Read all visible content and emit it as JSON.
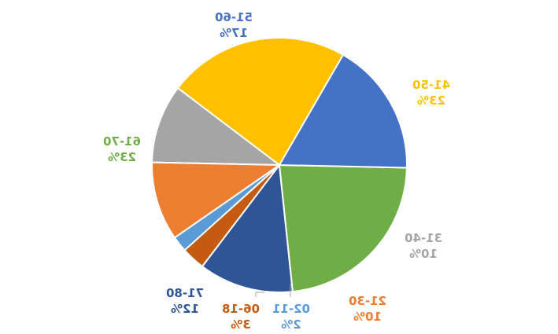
{
  "chart_data": {
    "type": "pie",
    "mirrored": true,
    "title": "",
    "legend": "none",
    "slices": [
      {
        "category": "41-50",
        "value": 23,
        "label": "23%",
        "color": "#FFC000"
      },
      {
        "category": "31-40",
        "value": 10,
        "label": "10%",
        "color": "#A5A5A5"
      },
      {
        "category": "21-30",
        "value": 10,
        "label": "10%",
        "color": "#ED7D31"
      },
      {
        "category": "02-11",
        "value": 2,
        "label": "2%",
        "color": "#5B9BD5"
      },
      {
        "category": "06-18",
        "value": 3,
        "label": "3%",
        "color": "#C55A11"
      },
      {
        "category": "71-80",
        "value": 12,
        "label": "12%",
        "color": "#2F5597"
      },
      {
        "category": "61-70",
        "value": 23,
        "label": "23%",
        "color": "#70AD47"
      },
      {
        "category": "51-60",
        "value": 17,
        "label": "17%",
        "color": "#4472C4"
      }
    ]
  }
}
